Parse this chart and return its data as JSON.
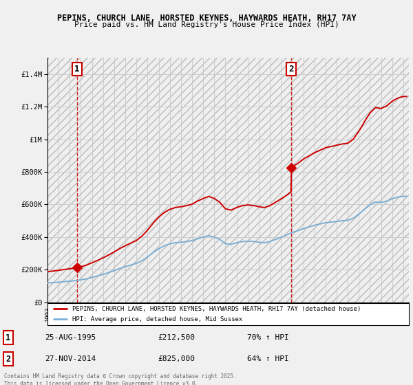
{
  "title_line1": "PEPINS, CHURCH LANE, HORSTED KEYNES, HAYWARDS HEATH, RH17 7AY",
  "title_line2": "Price paid vs. HM Land Registry's House Price Index (HPI)",
  "legend_house": "PEPINS, CHURCH LANE, HORSTED KEYNES, HAYWARDS HEATH, RH17 7AY (detached house)",
  "legend_hpi": "HPI: Average price, detached house, Mid Sussex",
  "footnote": "Contains HM Land Registry data © Crown copyright and database right 2025.\nThis data is licensed under the Open Government Licence v3.0.",
  "purchase1_date": "25-AUG-1995",
  "purchase1_price": "£212,500",
  "purchase1_hpi": "70% ↑ HPI",
  "purchase1_x": 1995.65,
  "purchase1_y": 212500,
  "purchase2_date": "27-NOV-2014",
  "purchase2_price": "£825,000",
  "purchase2_hpi": "64% ↑ HPI",
  "purchase2_x": 2014.9,
  "purchase2_y": 825000,
  "house_color": "#cc0000",
  "hpi_color": "#7bafd4",
  "background_color": "#f0f0f0",
  "plot_bg_color": "#ffffff",
  "grid_color": "#cccccc",
  "ylim": [
    0,
    1500000
  ],
  "xlim_start": 1993.0,
  "xlim_end": 2025.5
}
